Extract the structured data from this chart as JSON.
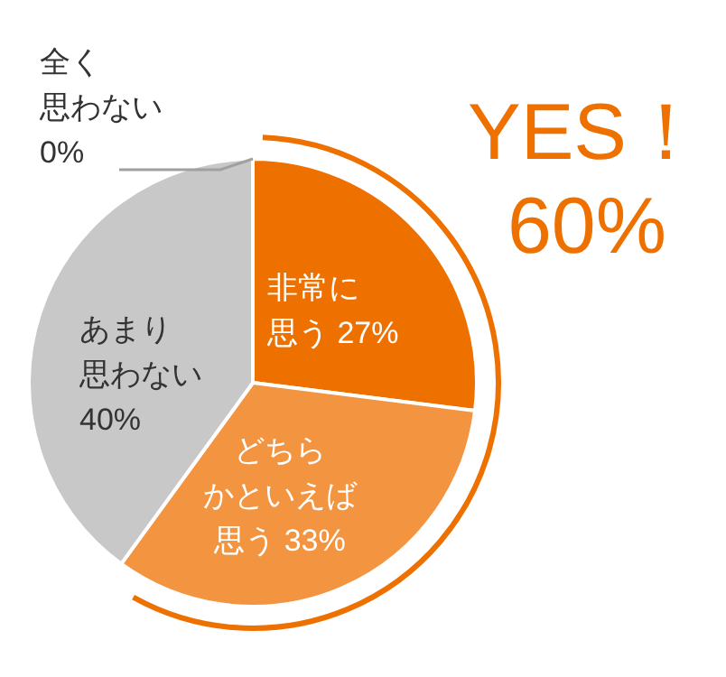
{
  "chart_data": {
    "type": "pie",
    "categories": [
      "非常に思う",
      "どちらかといえば思う",
      "あまり思わない",
      "全く思わない"
    ],
    "values": [
      27,
      33,
      40,
      0
    ],
    "colors": [
      "#ee7100",
      "#f29440",
      "#c8c8c8",
      "#a0a0a0"
    ],
    "value_labels": [
      "27%",
      "33%",
      "40%",
      "0%"
    ],
    "annotations": [
      "YES！",
      "60%"
    ]
  }
}
